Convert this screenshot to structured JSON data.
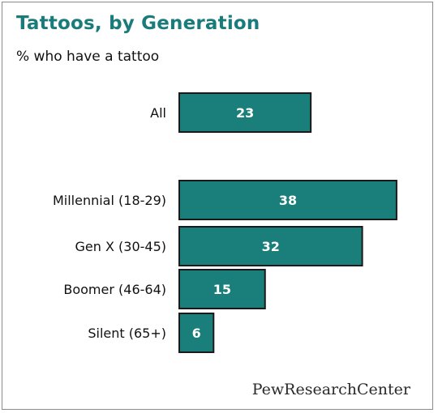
{
  "chart_data": {
    "type": "bar",
    "orientation": "horizontal",
    "title": "Tattoos, by Generation",
    "subtitle": "% who have a tattoo",
    "categories": [
      "All",
      "Millennial (18-29)",
      "Gen X (30-45)",
      "Boomer (46-64)",
      "Silent (65+)"
    ],
    "values": [
      23,
      38,
      32,
      15,
      6
    ],
    "xlim": [
      0,
      40
    ],
    "grid": false,
    "bar_color": "#1a7f7a",
    "bar_outline": "#1a1a1a"
  },
  "source": "PewResearchCenter"
}
